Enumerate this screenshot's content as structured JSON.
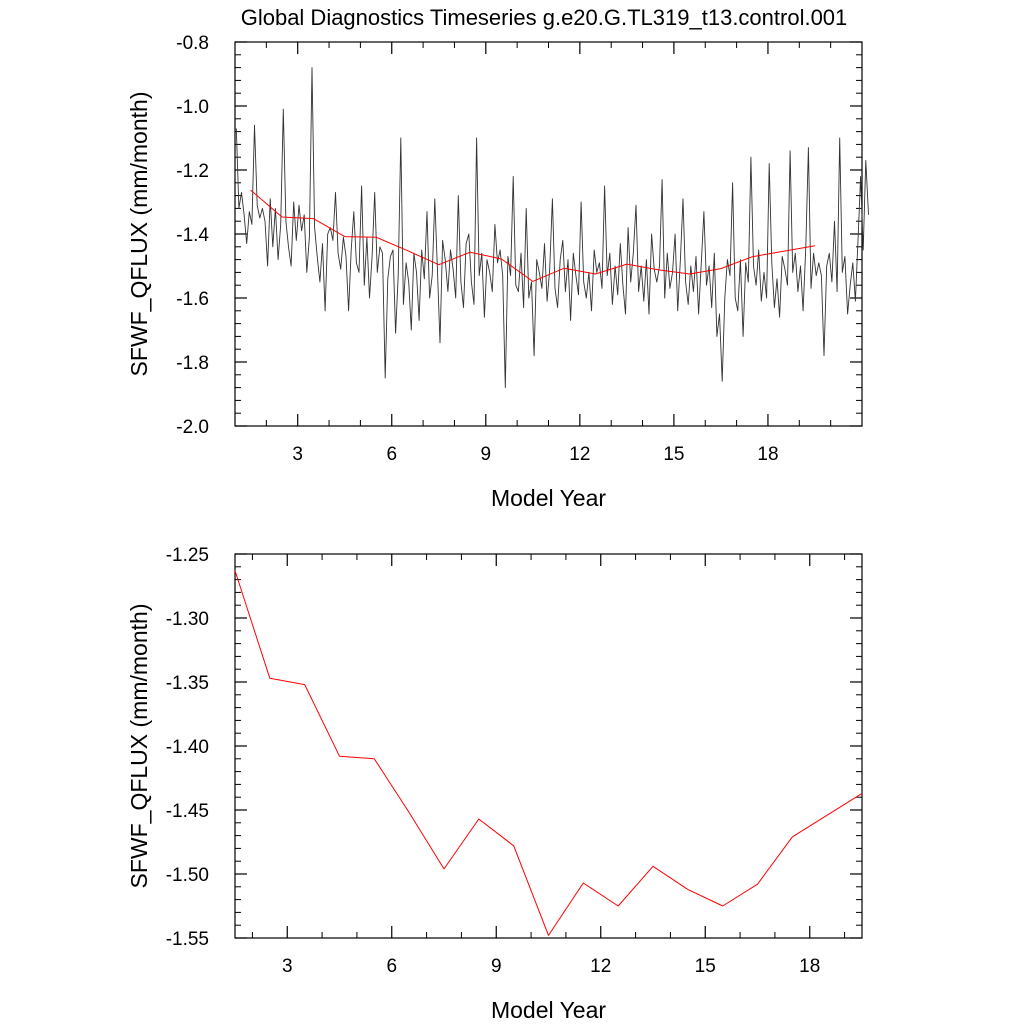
{
  "title": "Global Diagnostics Timeseries g.e20.G.TL319_t13.control.001",
  "colors": {
    "monthly": "#333333",
    "annual": "#ff0000",
    "axis": "#000000"
  },
  "chart_data": [
    {
      "type": "line",
      "xlabel": "Model Year",
      "ylabel": "SFWF_QFLUX (mm/month)",
      "xlim": [
        1,
        21
      ],
      "ylim": [
        -2.0,
        -0.8
      ],
      "x_ticks": [
        3,
        6,
        9,
        12,
        15,
        18
      ],
      "y_ticks": [
        -2.0,
        -1.8,
        -1.6,
        -1.4,
        -1.2,
        -1.0,
        -0.8
      ],
      "x_tick_labels": [
        "3",
        "6",
        "9",
        "12",
        "15",
        "18"
      ],
      "y_tick_labels": [
        "-2.0",
        "-1.8",
        "-1.6",
        "-1.4",
        "-1.2",
        "-1.0",
        "-0.8"
      ],
      "series": [
        {
          "x_start": 1.04,
          "x_step": 0.08333,
          "values": [
            -1.07,
            -1.32,
            -1.27,
            -1.34,
            -1.43,
            -1.33,
            -1.37,
            -1.06,
            -1.31,
            -1.35,
            -1.32,
            -1.36,
            -1.5,
            -1.29,
            -1.44,
            -1.32,
            -1.48,
            -1.37,
            -1.01,
            -1.36,
            -1.44,
            -1.5,
            -1.3,
            -1.42,
            -1.31,
            -1.39,
            -1.34,
            -1.52,
            -1.41,
            -0.88,
            -1.38,
            -1.47,
            -1.55,
            -1.43,
            -1.64,
            -1.4,
            -1.38,
            -1.42,
            -1.27,
            -1.46,
            -1.51,
            -1.41,
            -1.47,
            -1.64,
            -1.45,
            -1.33,
            -1.49,
            -1.52,
            -1.25,
            -1.56,
            -1.41,
            -1.6,
            -1.47,
            -1.27,
            -1.52,
            -1.44,
            -1.46,
            -1.85,
            -1.54,
            -1.47,
            -1.45,
            -1.71,
            -1.53,
            -1.1,
            -1.62,
            -1.49,
            -1.55,
            -1.7,
            -1.46,
            -1.52,
            -1.67,
            -1.45,
            -1.54,
            -1.33,
            -1.6,
            -1.53,
            -1.29,
            -1.51,
            -1.74,
            -1.42,
            -1.48,
            -1.58,
            -1.45,
            -1.51,
            -1.6,
            -1.28,
            -1.55,
            -1.63,
            -1.43,
            -1.4,
            -1.55,
            -1.62,
            -1.1,
            -1.53,
            -1.46,
            -1.66,
            -1.48,
            -1.52,
            -1.58,
            -1.37,
            -1.49,
            -1.45,
            -1.53,
            -1.88,
            -1.47,
            -1.53,
            -1.22,
            -1.56,
            -1.58,
            -1.46,
            -1.63,
            -1.32,
            -1.6,
            -1.55,
            -1.78,
            -1.48,
            -1.52,
            -1.57,
            -1.43,
            -1.61,
            -1.51,
            -1.29,
            -1.57,
            -1.63,
            -1.48,
            -1.42,
            -1.58,
            -1.48,
            -1.67,
            -1.46,
            -1.53,
            -1.59,
            -1.3,
            -1.55,
            -1.6,
            -1.52,
            -1.64,
            -1.45,
            -1.52,
            -1.49,
            -1.57,
            -1.25,
            -1.53,
            -1.46,
            -1.62,
            -1.5,
            -1.59,
            -1.43,
            -1.56,
            -1.65,
            -1.38,
            -1.55,
            -1.46,
            -1.31,
            -1.58,
            -1.5,
            -1.61,
            -1.48,
            -1.65,
            -1.4,
            -1.51,
            -1.55,
            -1.5,
            -1.23,
            -1.6,
            -1.46,
            -1.57,
            -1.52,
            -1.4,
            -1.64,
            -1.48,
            -1.29,
            -1.55,
            -1.62,
            -1.5,
            -1.58,
            -1.47,
            -1.65,
            -1.49,
            -1.33,
            -1.56,
            -1.5,
            -1.63,
            -1.46,
            -1.72,
            -1.65,
            -1.86,
            -1.6,
            -1.48,
            -1.53,
            -1.24,
            -1.6,
            -1.64,
            -1.48,
            -1.72,
            -1.49,
            -1.55,
            -1.16,
            -1.5,
            -1.56,
            -1.45,
            -1.61,
            -1.52,
            -1.6,
            -1.18,
            -1.49,
            -1.63,
            -1.54,
            -1.66,
            -1.47,
            -1.51,
            -1.56,
            -1.14,
            -1.52,
            -1.46,
            -1.58,
            -1.5,
            -1.64,
            -1.44,
            -1.13,
            -1.57,
            -1.46,
            -1.53,
            -1.49,
            -1.53,
            -1.78,
            -1.5,
            -1.46,
            -1.55,
            -1.36,
            -1.58,
            -1.1,
            -1.52,
            -1.47,
            -1.65,
            -1.56,
            -1.49,
            -1.61,
            -1.42,
            -1.22,
            -1.45,
            -1.17,
            -1.34
          ]
        },
        {
          "x": [
            1.5,
            2.5,
            3.5,
            4.5,
            5.5,
            6.5,
            7.5,
            8.5,
            9.5,
            10.5,
            11.5,
            12.5,
            13.5,
            14.5,
            15.5,
            16.5,
            17.5,
            19.5
          ],
          "values": [
            -1.263,
            -1.347,
            -1.352,
            -1.408,
            -1.41,
            -1.452,
            -1.496,
            -1.457,
            -1.478,
            -1.548,
            -1.507,
            -1.525,
            -1.494,
            -1.512,
            -1.525,
            -1.508,
            -1.471,
            -1.437
          ]
        }
      ]
    },
    {
      "type": "line",
      "xlabel": "Model Year",
      "ylabel": "SFWF_QFLUX (mm/month)",
      "xlim": [
        1.5,
        19.5
      ],
      "ylim": [
        -1.55,
        -1.25
      ],
      "x_ticks": [
        3,
        6,
        9,
        12,
        15,
        18
      ],
      "y_ticks": [
        -1.55,
        -1.5,
        -1.45,
        -1.4,
        -1.35,
        -1.3,
        -1.25
      ],
      "x_tick_labels": [
        "3",
        "6",
        "9",
        "12",
        "15",
        "18"
      ],
      "y_tick_labels": [
        "-1.55",
        "-1.50",
        "-1.45",
        "-1.40",
        "-1.35",
        "-1.30",
        "-1.25"
      ],
      "series": [
        {
          "x": [
            1.5,
            2.5,
            3.5,
            4.5,
            5.5,
            6.5,
            7.5,
            8.5,
            9.5,
            10.5,
            11.5,
            12.5,
            13.5,
            14.5,
            15.5,
            16.5,
            17.5,
            19.5
          ],
          "values": [
            -1.263,
            -1.347,
            -1.352,
            -1.408,
            -1.41,
            -1.452,
            -1.496,
            -1.457,
            -1.478,
            -1.548,
            -1.507,
            -1.525,
            -1.494,
            -1.512,
            -1.525,
            -1.508,
            -1.471,
            -1.437
          ]
        }
      ]
    }
  ]
}
